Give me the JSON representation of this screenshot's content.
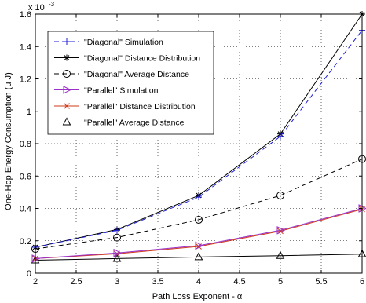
{
  "chart_data": {
    "type": "line",
    "title": "",
    "xlabel": "Path Loss Exponent - α",
    "ylabel": "One-Hop Energy Consumption (μ J)",
    "y_exponent_label": "x 10",
    "y_exponent_power": "-3",
    "xlim": [
      2,
      6
    ],
    "ylim": [
      0,
      1.6
    ],
    "xticks": [
      "2",
      "2.5",
      "3",
      "3.5",
      "4",
      "4.5",
      "5",
      "5.5",
      "6"
    ],
    "yticks": [
      "0",
      "0.2",
      "0.4",
      "0.6",
      "0.8",
      "1",
      "1.2",
      "1.4",
      "1.6"
    ],
    "grid": true,
    "legend_position": "top-left",
    "x": [
      2,
      3,
      4,
      5,
      6
    ],
    "series": [
      {
        "name": "\"Diagonal\" Simulation",
        "values": [
          0.16,
          0.265,
          0.47,
          0.845,
          1.5
        ],
        "color": "#1f1fd6",
        "dash": "dashed",
        "marker": "plus"
      },
      {
        "name": "\"Diagonal\" Distance Distribution",
        "values": [
          0.16,
          0.27,
          0.48,
          0.86,
          1.6
        ],
        "color": "#000000",
        "dash": "solid",
        "marker": "asterisk"
      },
      {
        "name": "\"Diagonal\" Average Distance",
        "values": [
          0.15,
          0.22,
          0.33,
          0.48,
          0.705
        ],
        "color": "#000000",
        "dash": "dashed",
        "marker": "circle"
      },
      {
        "name": "\"Parallel\" Simulation",
        "values": [
          0.09,
          0.125,
          0.17,
          0.265,
          0.4
        ],
        "color": "#9b30c8",
        "dash": "solid",
        "marker": "triangle-right"
      },
      {
        "name": "\"Parallel\" Distance Distribution",
        "values": [
          0.09,
          0.12,
          0.165,
          0.26,
          0.395
        ],
        "color": "#d03a1a",
        "dash": "solid",
        "marker": "x"
      },
      {
        "name": "\"Parallel\" Average Distance",
        "values": [
          0.08,
          0.09,
          0.1,
          0.108,
          0.118
        ],
        "color": "#000000",
        "dash": "solid",
        "marker": "triangle-up"
      }
    ]
  }
}
